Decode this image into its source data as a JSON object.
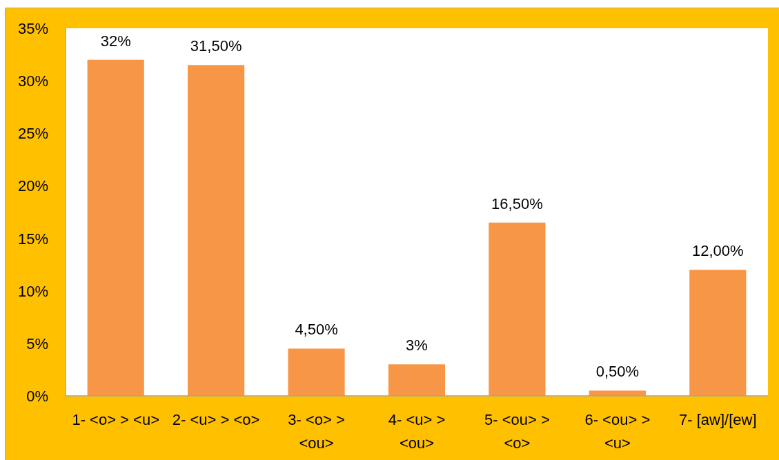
{
  "chart_data": {
    "type": "bar",
    "categories": [
      "1- <o> > <u>",
      "2- <u> > <o>",
      "3- <o> > <ou>",
      "4- <u> > <ou>",
      "5- <ou> > <o>",
      "6- <ou> > <u>",
      "7- [aw]/[ew]"
    ],
    "values": [
      32,
      31.5,
      4.5,
      3,
      16.5,
      0.5,
      12
    ],
    "color": "#f79646",
    "value_labels": [
      "32%",
      "31,50%",
      "4,50%",
      "3%",
      "16,50%",
      "0,50%",
      "12,00%"
    ],
    "ylim": [
      0,
      35
    ],
    "yticks": [
      {
        "value": 0,
        "label": "0%"
      },
      {
        "value": 5,
        "label": "5%"
      },
      {
        "value": 10,
        "label": "10%"
      },
      {
        "value": 15,
        "label": "15%"
      },
      {
        "value": 20,
        "label": "20%"
      },
      {
        "value": 25,
        "label": "25%"
      },
      {
        "value": 30,
        "label": "30%"
      },
      {
        "value": 35,
        "label": "35%"
      }
    ]
  }
}
